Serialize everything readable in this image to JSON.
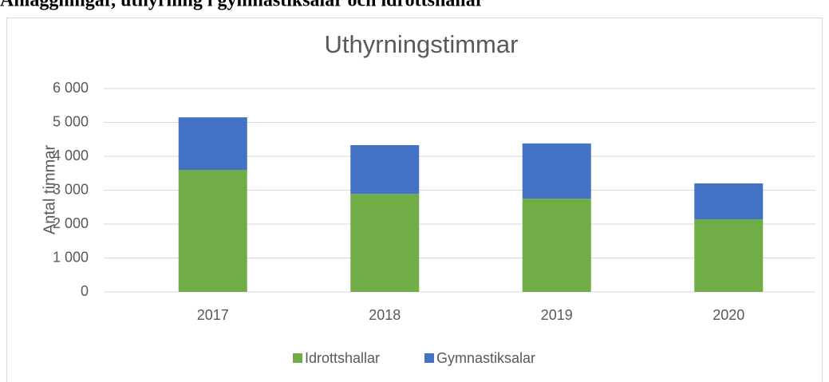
{
  "heading": "Anläggningar, uthyrning i gymnastiksalar och idrottshallar",
  "chart_data": {
    "type": "bar",
    "stacked": true,
    "title": "Uthyrningstimmar",
    "y_label": "Antal timmar",
    "categories": [
      "2017",
      "2018",
      "2019",
      "2020"
    ],
    "series": [
      {
        "name": "Idrottshallar",
        "color": "#70ad47",
        "values": [
          3600,
          2890,
          2750,
          2140
        ]
      },
      {
        "name": "Gymnastiksalar",
        "color": "#4472c4",
        "values": [
          1550,
          1440,
          1630,
          1060
        ]
      }
    ],
    "ylim": [
      0,
      6000
    ],
    "yticks": [
      0,
      {
        "value": 1000,
        "label": "1 000"
      },
      {
        "value": 2000,
        "label": "2 000"
      },
      {
        "value": 3000,
        "label": "3 000"
      },
      {
        "value": 4000,
        "label": "4 000"
      },
      {
        "value": 5000,
        "label": "5 000"
      },
      {
        "value": 6000,
        "label": "6 000"
      }
    ],
    "grid": true,
    "legend": "bottom"
  }
}
